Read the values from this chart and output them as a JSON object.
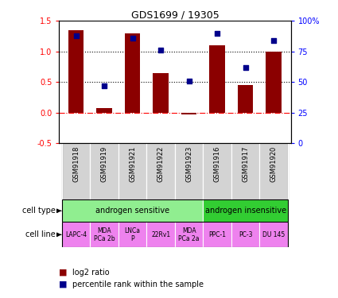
{
  "title": "GDS1699 / 19305",
  "samples": [
    "GSM91918",
    "GSM91919",
    "GSM91921",
    "GSM91922",
    "GSM91923",
    "GSM91916",
    "GSM91917",
    "GSM91920"
  ],
  "log2_ratio": [
    1.35,
    0.07,
    1.3,
    0.65,
    -0.03,
    1.1,
    0.45,
    1.0
  ],
  "pct_rank": [
    88,
    47,
    86,
    76,
    51,
    90,
    62,
    84
  ],
  "bar_color": "#8B0000",
  "dot_color": "#00008B",
  "gsm_bg_color": "#D3D3D3",
  "cell_types": [
    {
      "label": "androgen sensitive",
      "start": 0,
      "end": 5,
      "color": "#90EE90"
    },
    {
      "label": "androgen insensitive",
      "start": 5,
      "end": 8,
      "color": "#32CD32"
    }
  ],
  "cell_lines": [
    {
      "label": "LAPC-4",
      "start": 0,
      "end": 1
    },
    {
      "label": "MDA\nPCa 2b",
      "start": 1,
      "end": 2
    },
    {
      "label": "LNCa\nP",
      "start": 2,
      "end": 3
    },
    {
      "label": "22Rv1",
      "start": 3,
      "end": 4
    },
    {
      "label": "MDA\nPCa 2a",
      "start": 4,
      "end": 5
    },
    {
      "label": "PPC-1",
      "start": 5,
      "end": 6
    },
    {
      "label": "PC-3",
      "start": 6,
      "end": 7
    },
    {
      "label": "DU 145",
      "start": 7,
      "end": 8
    }
  ],
  "cell_line_color": "#EE82EE",
  "ylim_left": [
    -0.5,
    1.5
  ],
  "ylim_right": [
    0,
    100
  ],
  "yticks_left": [
    -0.5,
    0.0,
    0.5,
    1.0,
    1.5
  ],
  "yticks_right": [
    0,
    25,
    50,
    75,
    100
  ],
  "legend_log2": "log2 ratio",
  "legend_pct": "percentile rank within the sample",
  "n_samples": 8
}
